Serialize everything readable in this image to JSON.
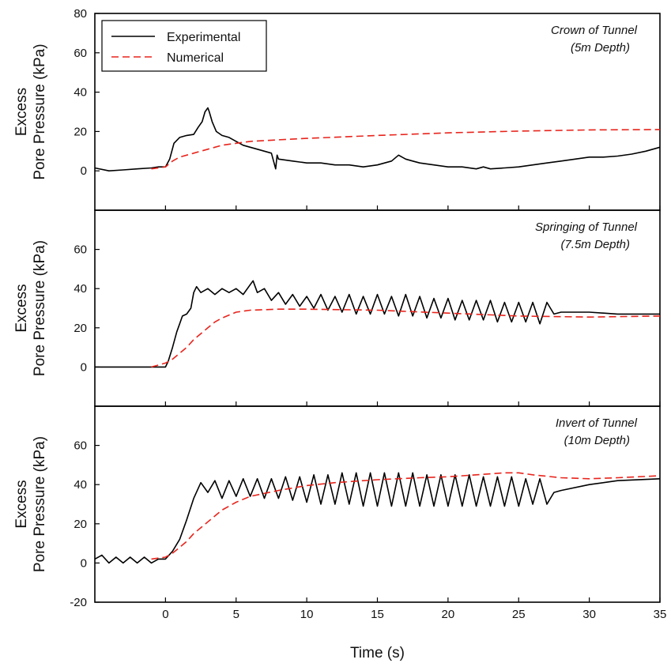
{
  "chart_data": [
    {
      "type": "line",
      "annotation": [
        "Crown of Tunnel",
        "(5m Depth)"
      ],
      "ylabel_line1": "Excess",
      "ylabel_line2": "Pore Pressure (kPa)",
      "xlim": [
        -5,
        35
      ],
      "ylim": [
        -20,
        80
      ],
      "yticks": [
        0,
        20,
        40,
        60,
        80
      ],
      "xticks": [
        0,
        5,
        10,
        15,
        20,
        25,
        30,
        35
      ],
      "grid": false,
      "legend": {
        "placement": "top-left",
        "entries": [
          {
            "label": "Experimental",
            "color": "#000000",
            "style": "solid"
          },
          {
            "label": "Numerical",
            "color": "#e8241c",
            "style": "dashed"
          }
        ]
      },
      "series": [
        {
          "name": "Experimental",
          "color": "#000000",
          "dash": "",
          "x": [
            -5,
            -4,
            -3,
            -2,
            -1,
            -0.5,
            0,
            0.3,
            0.6,
            1,
            1.5,
            2,
            2.3,
            2.6,
            2.8,
            3,
            3.1,
            3.3,
            3.6,
            4,
            4.5,
            5,
            5.5,
            6,
            6.5,
            7,
            7.5,
            7.8,
            7.9,
            8,
            9,
            10,
            11,
            12,
            13,
            14,
            15,
            16,
            16.5,
            17,
            17.5,
            18,
            19,
            20,
            21,
            22,
            22.5,
            23,
            24,
            25,
            26,
            27,
            28,
            29,
            30,
            31,
            32,
            33,
            34,
            35
          ],
          "y": [
            1.5,
            0,
            0.5,
            1,
            1.5,
            2,
            2,
            6,
            14,
            17,
            18,
            18.5,
            22,
            25,
            30,
            32,
            30,
            25,
            20,
            18,
            17,
            15,
            13,
            12,
            11,
            10,
            9,
            1,
            8,
            6,
            5,
            4,
            4,
            3,
            3,
            2,
            3,
            5,
            8,
            6,
            5,
            4,
            3,
            2,
            2,
            1,
            2,
            1,
            1.5,
            2,
            3,
            4,
            5,
            6,
            7,
            7,
            7.5,
            8.5,
            10,
            12
          ]
        },
        {
          "name": "Numerical",
          "color": "#e8241c",
          "dash": "9,5",
          "x": [
            -1,
            0,
            0.5,
            1,
            2,
            3,
            4,
            5,
            6,
            8,
            10,
            15,
            20,
            25,
            30,
            35
          ],
          "y": [
            1,
            2,
            5,
            7,
            9,
            11,
            13,
            14,
            15,
            15.8,
            16.5,
            18,
            19.3,
            20.2,
            20.8,
            21
          ]
        }
      ]
    },
    {
      "type": "line",
      "annotation": [
        "Springing of Tunnel",
        "(7.5m Depth)"
      ],
      "ylabel_line1": "Excess",
      "ylabel_line2": "Pore Pressure (kPa)",
      "xlim": [
        -5,
        35
      ],
      "ylim": [
        -20,
        80
      ],
      "yticks": [
        0,
        20,
        40,
        60
      ],
      "xticks": [
        0,
        5,
        10,
        15,
        20,
        25,
        30,
        35
      ],
      "grid": false,
      "series": [
        {
          "name": "Experimental",
          "color": "#000000",
          "dash": "",
          "x": [
            -5,
            -3,
            -1,
            0,
            0.2,
            0.5,
            0.8,
            1,
            1.2,
            1.5,
            1.8,
            2,
            2.2,
            2.5,
            3,
            3.5,
            4,
            4.5,
            5,
            5.5,
            6,
            6.2,
            6.5,
            7,
            7.5,
            8,
            8.5,
            9,
            9.5,
            10,
            10.5,
            11,
            11.5,
            12,
            12.5,
            13,
            13.5,
            14,
            14.5,
            15,
            15.5,
            16,
            16.5,
            17,
            17.5,
            18,
            18.5,
            19,
            19.5,
            20,
            20.5,
            21,
            21.5,
            22,
            22.5,
            23,
            23.5,
            24,
            24.5,
            25,
            25.5,
            26,
            26.5,
            27,
            27.5,
            28,
            30,
            32,
            35
          ],
          "y": [
            0,
            0,
            0,
            0,
            3,
            10,
            18,
            22,
            26,
            27,
            30,
            38,
            41,
            38,
            40,
            37,
            40,
            38,
            40,
            37,
            42,
            44,
            38,
            40,
            34,
            38,
            32,
            37,
            31,
            36,
            30,
            37,
            29,
            36,
            28,
            37,
            27,
            36,
            27,
            37,
            27,
            36,
            26,
            37,
            26,
            36,
            25,
            35,
            25,
            35,
            24,
            34,
            24,
            34,
            24,
            34,
            23,
            33,
            23,
            33,
            23,
            33,
            22,
            33,
            27,
            28,
            28,
            27,
            27
          ]
        },
        {
          "name": "Numerical",
          "color": "#e8241c",
          "dash": "9,5",
          "x": [
            -1,
            0,
            0.5,
            1,
            1.5,
            2,
            2.5,
            3,
            3.5,
            4,
            5,
            6,
            8,
            10,
            15,
            20,
            25,
            30,
            35
          ],
          "y": [
            0,
            2,
            4,
            7,
            10,
            14,
            17,
            20,
            23,
            25,
            28,
            29,
            29.5,
            29.5,
            29,
            27.5,
            26,
            25.5,
            26
          ]
        }
      ]
    },
    {
      "type": "line",
      "annotation": [
        "Invert of Tunnel",
        "(10m Depth)"
      ],
      "ylabel_line1": "Excess",
      "ylabel_line2": "Pore Pressure (kPa)",
      "xlabel": "Time (s)",
      "xlim": [
        -5,
        35
      ],
      "ylim": [
        -20,
        80
      ],
      "yticks": [
        -20,
        0,
        20,
        40,
        60
      ],
      "xticks": [
        0,
        5,
        10,
        15,
        20,
        25,
        30,
        35
      ],
      "xticklabels": [
        "0",
        "5",
        "10",
        "15",
        "20",
        "25",
        "30",
        "35"
      ],
      "grid": false,
      "series": [
        {
          "name": "Experimental",
          "color": "#000000",
          "dash": "",
          "x": [
            -5,
            -4.5,
            -4,
            -3.5,
            -3,
            -2.5,
            -2,
            -1.5,
            -1,
            -0.5,
            0,
            0.5,
            1,
            1.5,
            2,
            2.5,
            3,
            3.5,
            4,
            4.5,
            5,
            5.5,
            6,
            6.5,
            7,
            7.5,
            8,
            8.5,
            9,
            9.5,
            10,
            10.5,
            11,
            11.5,
            12,
            12.5,
            13,
            13.5,
            14,
            14.5,
            15,
            15.5,
            16,
            16.5,
            17,
            17.5,
            18,
            18.5,
            19,
            19.5,
            20,
            20.5,
            21,
            21.5,
            22,
            22.5,
            23,
            23.5,
            24,
            24.5,
            25,
            25.5,
            26,
            26.5,
            27,
            27.5,
            28,
            30,
            32,
            35
          ],
          "y": [
            2,
            4,
            0,
            3,
            0,
            3,
            0,
            3,
            0,
            2,
            2,
            6,
            12,
            22,
            33,
            41,
            36,
            42,
            33,
            42,
            34,
            43,
            34,
            43,
            33,
            43,
            33,
            44,
            32,
            44,
            31,
            45,
            30,
            45,
            30,
            46,
            30,
            46,
            29,
            46,
            29,
            46,
            29,
            46,
            29,
            46,
            29,
            45,
            29,
            45,
            29,
            45,
            29,
            45,
            29,
            44,
            29,
            44,
            29,
            44,
            29,
            43,
            30,
            43,
            30,
            36,
            37,
            40,
            42,
            43
          ]
        },
        {
          "name": "Numerical",
          "color": "#e8241c",
          "dash": "9,5",
          "x": [
            -1,
            0,
            0.5,
            1,
            1.5,
            2,
            2.5,
            3,
            3.5,
            4,
            5,
            6,
            8,
            10,
            12,
            15,
            18,
            20,
            22,
            24,
            25,
            26,
            28,
            30,
            32,
            35
          ],
          "y": [
            2,
            3,
            5,
            8,
            11,
            15,
            18,
            21,
            24,
            27,
            31,
            34,
            37,
            39.5,
            41,
            42.5,
            43.5,
            44,
            45,
            46,
            46,
            45,
            43.5,
            43,
            43.5,
            44.5
          ]
        }
      ]
    }
  ]
}
